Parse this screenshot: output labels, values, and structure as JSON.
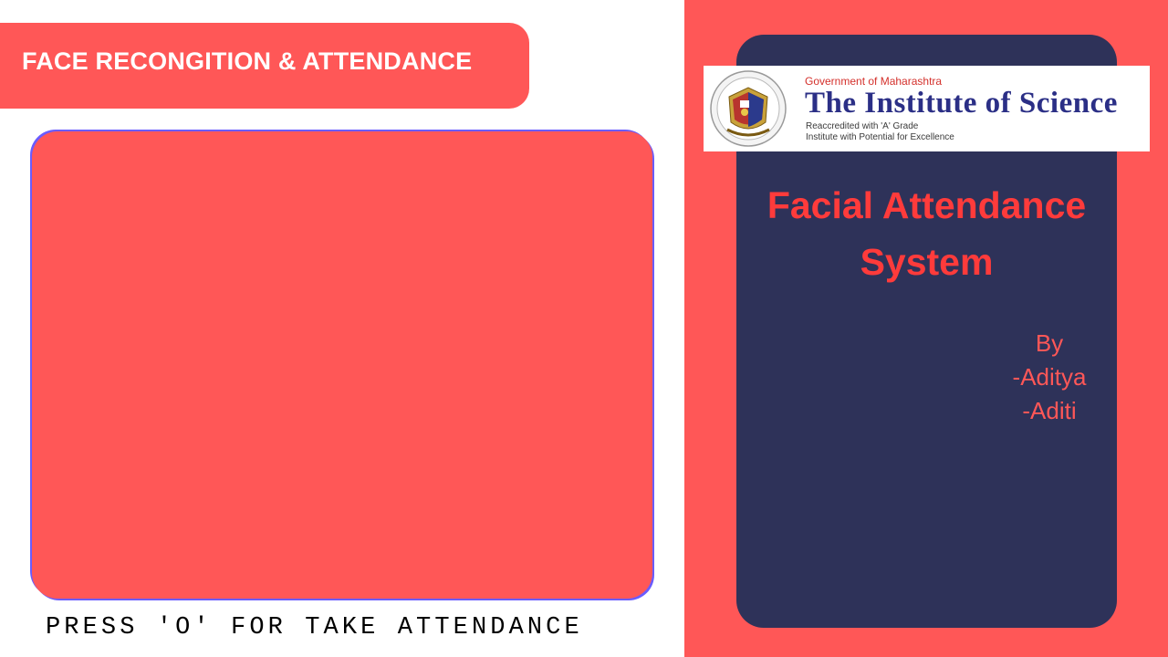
{
  "header": {
    "title": "FACE RECONGITION & ATTENDANCE"
  },
  "camera": {
    "instruction": "PRESS 'O' FOR TAKE ATTENDANCE"
  },
  "logo": {
    "government": "Government of Maharashtra",
    "institute_name": "The Institute of Science",
    "grade": "Reaccredited with 'A' Grade",
    "potential": "Institute with Potential for Excellence"
  },
  "panel": {
    "title_line1": "Facial Attendance",
    "title_line2": "System",
    "by_label": "By",
    "author_1": "-Aditya",
    "author_2": "-Aditi"
  },
  "colors": {
    "accent": "#ff5757",
    "card": "#2e3259",
    "title_text": "#ff3b3b",
    "institute_blue": "#2b2f86"
  }
}
